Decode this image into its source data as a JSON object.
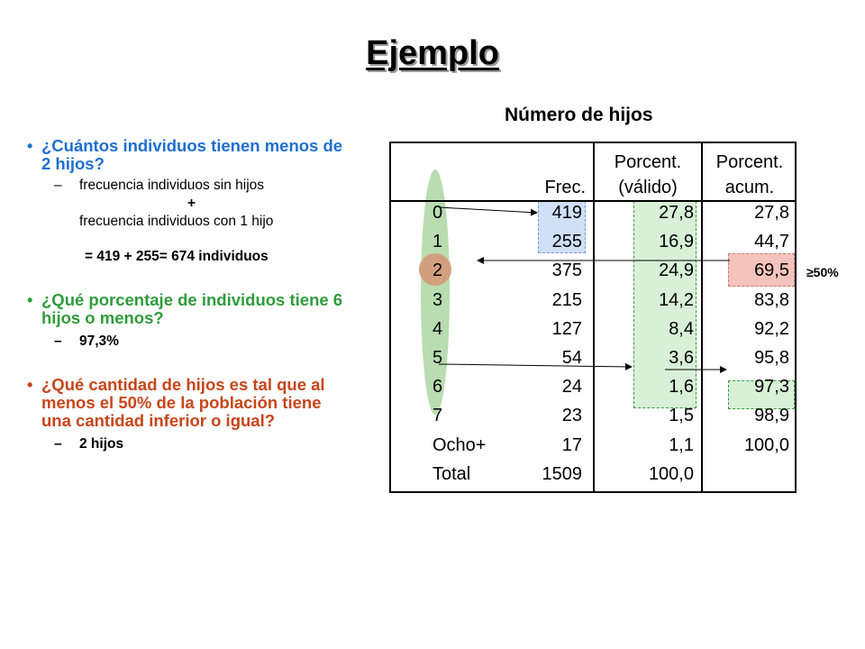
{
  "title": "Ejemplo",
  "bullets": {
    "q1": {
      "question": "¿Cuántos individuos tienen menos de 2 hijos?",
      "line1": "frecuencia individuos sin hijos",
      "plus": "+",
      "line2": "frecuencia individuos con 1 hijo",
      "result": "= 419 + 255= 674 individuos"
    },
    "q2": {
      "question": "¿Qué porcentaje de individuos tiene 6 hijos o menos?",
      "answer": "97,3%"
    },
    "q3": {
      "question": "¿Qué cantidad de hijos es tal que al menos el 50% de la población tiene una cantidad inferior o igual?",
      "answer": "2 hijos"
    }
  },
  "table": {
    "title": "Número de hijos",
    "headers": {
      "frec": "Frec.",
      "pv1": "Porcent.",
      "pv2": "(válido)",
      "pa1": "Porcent.",
      "pa2": "acum."
    },
    "rows": [
      {
        "label": "0",
        "frec": "419",
        "pv": "27,8",
        "pa": "27,8"
      },
      {
        "label": "1",
        "frec": "255",
        "pv": "16,9",
        "pa": "44,7"
      },
      {
        "label": "2",
        "frec": "375",
        "pv": "24,9",
        "pa": "69,5"
      },
      {
        "label": "3",
        "frec": "215",
        "pv": "14,2",
        "pa": "83,8"
      },
      {
        "label": "4",
        "frec": "127",
        "pv": "8,4",
        "pa": "92,2"
      },
      {
        "label": "5",
        "frec": "54",
        "pv": "3,6",
        "pa": "95,8"
      },
      {
        "label": "6",
        "frec": "24",
        "pv": "1,6",
        "pa": "97,3"
      },
      {
        "label": "7",
        "frec": "23",
        "pv": "1,5",
        "pa": "98,9"
      },
      {
        "label": "Ocho+",
        "frec": "17",
        "pv": "1,1",
        "pa": "100,0"
      },
      {
        "label": "Total",
        "frec": "1509",
        "pv": "100,0",
        "pa": ""
      }
    ],
    "note": "≥50%"
  },
  "colors": {
    "question1": "#1f6fd1",
    "question2": "#2f9c3c",
    "question3": "#c8451a",
    "highlight_blue": "#cfe0f7",
    "highlight_green": "#d8f0d8",
    "highlight_red": "#f4c3bc",
    "oval_green": "#b9dcb0",
    "circle_brown": "#d2a07e"
  }
}
